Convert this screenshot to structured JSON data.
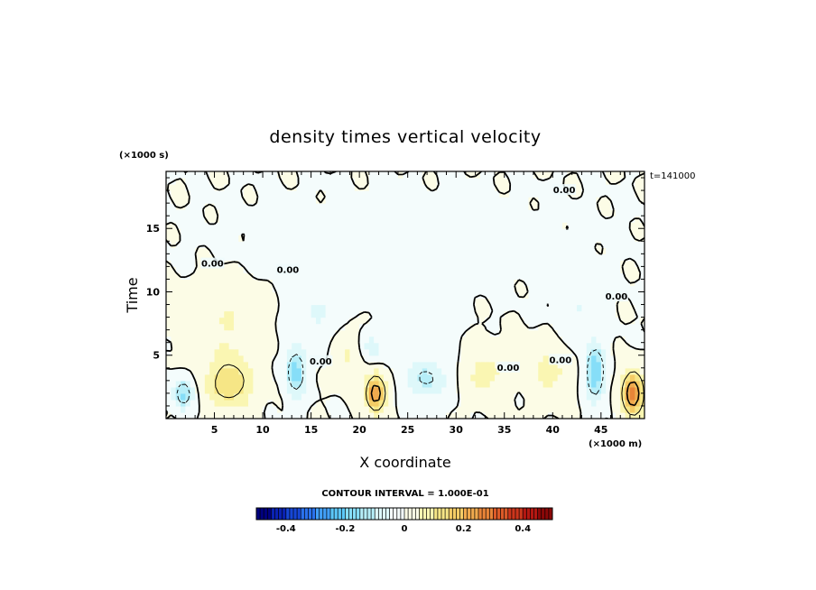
{
  "chart_data": {
    "type": "heatmap",
    "title": "density times vertical velocity",
    "xlabel": "X coordinate",
    "ylabel": "Time",
    "x_unit_note": "(×1000 m)",
    "y_unit_note": "(×1000 s)",
    "time_stamp": "t=141000",
    "xlim": [
      0,
      49.5
    ],
    "ylim": [
      0,
      19.5
    ],
    "x_ticks": [
      5,
      10,
      15,
      20,
      25,
      30,
      35,
      40,
      45
    ],
    "y_ticks": [
      5,
      10,
      15
    ],
    "contour_interval_text": "CONTOUR INTERVAL = 1.000E-01",
    "colorbar": {
      "range": [
        -0.5,
        0.5
      ],
      "ticks": [
        -0.4,
        -0.2,
        0,
        0.2,
        0.4
      ],
      "tick_labels": [
        "-0.4",
        "-0.2",
        "0",
        "0.2",
        "0.4"
      ],
      "colors": [
        "#000080",
        "#0a22b4",
        "#1646d6",
        "#2a72ee",
        "#42a0f8",
        "#5cc8f8",
        "#86def8",
        "#b6eef8",
        "#def8fa",
        "#f4fcfc",
        "#fcfce6",
        "#faf6b2",
        "#f6e686",
        "#f4cc66",
        "#f0aa4e",
        "#e88438",
        "#dc5a28",
        "#cc361c",
        "#b41812",
        "#8c0808"
      ]
    },
    "zero_contour_labels": [
      {
        "x": 4.8,
        "y": 12.2,
        "text": "0.00"
      },
      {
        "x": 12.6,
        "y": 11.7,
        "text": "0.00"
      },
      {
        "x": 16.0,
        "y": 4.5,
        "text": "0.00"
      },
      {
        "x": 35.4,
        "y": 4.0,
        "text": "0.00"
      },
      {
        "x": 40.8,
        "y": 4.6,
        "text": "0.00"
      },
      {
        "x": 46.6,
        "y": 9.6,
        "text": "0.00"
      },
      {
        "x": 41.2,
        "y": 18.0,
        "text": "0.00"
      }
    ],
    "features": [
      {
        "name": "neg-cell-x2",
        "sign": -1,
        "x": 1.8,
        "y": 2.0,
        "sx": 1.0,
        "sy": 1.2,
        "amp": 0.16
      },
      {
        "name": "pos-cell-x6",
        "sign": 1,
        "x": 6.6,
        "y": 2.8,
        "sx": 2.4,
        "sy": 2.0,
        "amp": 0.14
      },
      {
        "name": "pos-band-x6",
        "sign": 1,
        "x": 6.0,
        "y": 7.5,
        "sx": 4.0,
        "sy": 3.0,
        "amp": 0.05
      },
      {
        "name": "neg-cell-x13",
        "sign": -1,
        "x": 13.4,
        "y": 3.7,
        "sx": 1.0,
        "sy": 1.8,
        "amp": 0.18
      },
      {
        "name": "neg-band-x15",
        "sign": -1,
        "x": 15.5,
        "y": 8.2,
        "sx": 2.6,
        "sy": 2.5,
        "amp": 0.05
      },
      {
        "name": "pos-cell-x21",
        "sign": 1,
        "x": 21.7,
        "y": 2.0,
        "sx": 1.0,
        "sy": 1.4,
        "amp": 0.26
      },
      {
        "name": "pos-band-x19",
        "sign": 1,
        "x": 19.0,
        "y": 5.2,
        "sx": 1.6,
        "sy": 2.0,
        "amp": 0.06
      },
      {
        "name": "neg-cell-x21",
        "sign": -1,
        "x": 21.0,
        "y": 5.6,
        "sx": 1.2,
        "sy": 1.2,
        "amp": 0.08
      },
      {
        "name": "neg-cell-x27",
        "sign": -1,
        "x": 27.0,
        "y": 3.2,
        "sx": 2.2,
        "sy": 1.6,
        "amp": 0.11
      },
      {
        "name": "neg-band-x26",
        "sign": -1,
        "x": 26.0,
        "y": 7.8,
        "sx": 3.0,
        "sy": 2.5,
        "amp": 0.04
      },
      {
        "name": "pos-cell-x33",
        "sign": 1,
        "x": 33.0,
        "y": 3.6,
        "sx": 2.2,
        "sy": 2.0,
        "amp": 0.07
      },
      {
        "name": "pos-cell-x40",
        "sign": 1,
        "x": 39.8,
        "y": 3.8,
        "sx": 2.0,
        "sy": 2.2,
        "amp": 0.07
      },
      {
        "name": "neg-cell-x44",
        "sign": -1,
        "x": 44.4,
        "y": 3.6,
        "sx": 1.0,
        "sy": 2.0,
        "amp": 0.2
      },
      {
        "name": "neg-band-x43",
        "sign": -1,
        "x": 43.0,
        "y": 8.2,
        "sx": 2.2,
        "sy": 2.6,
        "amp": 0.05
      },
      {
        "name": "pos-cell-x48",
        "sign": 1,
        "x": 48.3,
        "y": 2.0,
        "sx": 1.1,
        "sy": 1.7,
        "amp": 0.28
      },
      {
        "name": "neg-band-top",
        "sign": -1,
        "x": 25.0,
        "y": 14.0,
        "sx": 20.0,
        "sy": 4.0,
        "amp": 0.012
      }
    ]
  }
}
